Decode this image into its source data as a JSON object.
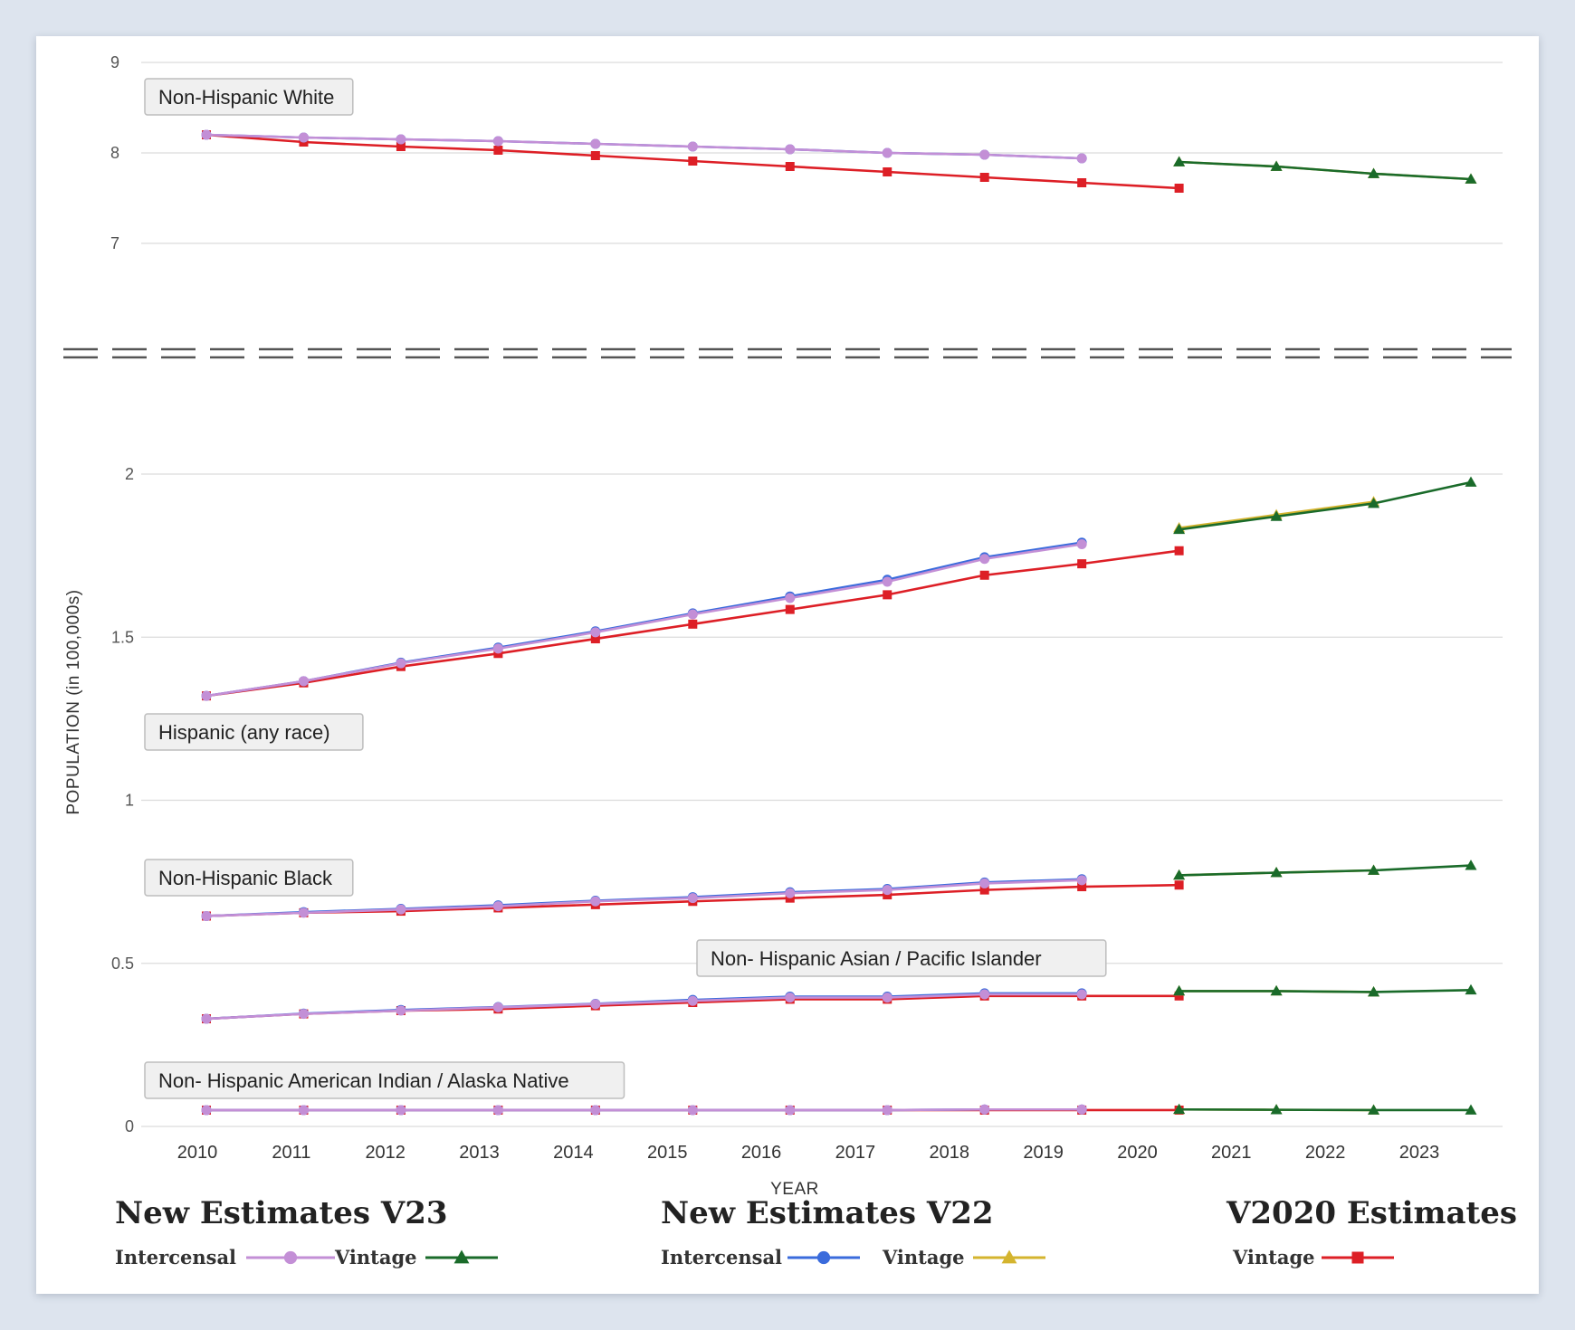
{
  "chart_data": {
    "type": "line",
    "xlabel": "YEAR",
    "ylabel": "POPULATION (in 100,000s)",
    "x": [
      2010,
      2011,
      2012,
      2013,
      2014,
      2015,
      2016,
      2017,
      2018,
      2019,
      2020,
      2021,
      2022,
      2023
    ],
    "x_ticks": [
      "2010",
      "2011",
      "2012",
      "2013",
      "2014",
      "2015",
      "2016",
      "2017",
      "2018",
      "2019",
      "2020",
      "2021",
      "2022",
      "2023"
    ],
    "upper_axis": {
      "ylim": [
        7,
        9
      ],
      "ticks": [
        "7",
        "8",
        "9"
      ]
    },
    "lower_axis": {
      "ylim": [
        0,
        2
      ],
      "ticks": [
        "0",
        "0.5",
        "1",
        "1.5",
        "2"
      ]
    },
    "groups": [
      {
        "label": "Non-Hispanic White",
        "panel": "upper",
        "series": {
          "v23_intercensal": [
            8.2,
            8.17,
            8.15,
            8.13,
            8.1,
            8.07,
            8.04,
            8.0,
            7.98,
            7.94,
            null,
            null,
            null,
            null
          ],
          "v22_intercensal": [
            8.2,
            8.17,
            8.15,
            8.13,
            8.1,
            8.07,
            8.04,
            8.0,
            7.98,
            7.94,
            null,
            null,
            null,
            null
          ],
          "v2020_vintage": [
            8.2,
            8.12,
            8.07,
            8.03,
            7.97,
            7.91,
            7.85,
            7.79,
            7.73,
            7.67,
            7.61,
            null,
            null,
            null
          ],
          "v22_vintage": [
            null,
            null,
            null,
            null,
            null,
            null,
            null,
            null,
            null,
            null,
            7.9,
            7.85,
            7.77,
            7.71
          ],
          "v23_vintage": [
            null,
            null,
            null,
            null,
            null,
            null,
            null,
            null,
            null,
            null,
            7.9,
            7.85,
            7.77,
            7.71
          ]
        }
      },
      {
        "label": "Hispanic (any race)",
        "panel": "lower",
        "series": {
          "v23_intercensal": [
            1.32,
            1.365,
            1.42,
            1.465,
            1.515,
            1.57,
            1.62,
            1.67,
            1.74,
            1.785,
            null,
            null,
            null,
            null
          ],
          "v22_intercensal": [
            1.32,
            1.365,
            1.422,
            1.468,
            1.518,
            1.573,
            1.625,
            1.676,
            1.745,
            1.79,
            null,
            null,
            null,
            null
          ],
          "v2020_vintage": [
            1.32,
            1.36,
            1.41,
            1.45,
            1.495,
            1.54,
            1.585,
            1.63,
            1.69,
            1.725,
            1.765,
            null,
            null,
            null
          ],
          "v22_vintage": [
            null,
            null,
            null,
            null,
            null,
            null,
            null,
            null,
            null,
            null,
            1.835,
            1.875,
            1.915,
            null
          ],
          "v23_vintage": [
            null,
            null,
            null,
            null,
            null,
            null,
            null,
            null,
            null,
            null,
            1.83,
            1.87,
            1.91,
            1.975
          ]
        }
      },
      {
        "label": "Non-Hispanic Black",
        "panel": "lower",
        "series": {
          "v23_intercensal": [
            0.645,
            0.655,
            0.665,
            0.675,
            0.69,
            0.7,
            0.715,
            0.725,
            0.745,
            0.755,
            null,
            null,
            null,
            null
          ],
          "v22_intercensal": [
            0.645,
            0.657,
            0.667,
            0.678,
            0.692,
            0.703,
            0.718,
            0.728,
            0.748,
            0.758,
            null,
            null,
            null,
            null
          ],
          "v2020_vintage": [
            0.645,
            0.655,
            0.66,
            0.67,
            0.68,
            0.69,
            0.7,
            0.71,
            0.725,
            0.735,
            0.74,
            null,
            null,
            null
          ],
          "v22_vintage": [
            null,
            null,
            null,
            null,
            null,
            null,
            null,
            null,
            null,
            null,
            0.77,
            0.778,
            0.785,
            null
          ],
          "v23_vintage": [
            null,
            null,
            null,
            null,
            null,
            null,
            null,
            null,
            null,
            null,
            0.77,
            0.778,
            0.785,
            0.8
          ]
        }
      },
      {
        "label": "Non- Hispanic Asian / Pacific Islander",
        "panel": "lower",
        "series": {
          "v23_intercensal": [
            0.33,
            0.345,
            0.355,
            0.365,
            0.375,
            0.385,
            0.395,
            0.395,
            0.405,
            0.405,
            null,
            null,
            null,
            null
          ],
          "v22_intercensal": [
            0.33,
            0.346,
            0.357,
            0.366,
            0.376,
            0.388,
            0.398,
            0.398,
            0.408,
            0.408,
            null,
            null,
            null,
            null
          ],
          "v2020_vintage": [
            0.33,
            0.345,
            0.355,
            0.36,
            0.37,
            0.38,
            0.39,
            0.39,
            0.4,
            0.4,
            0.4,
            null,
            null,
            null
          ],
          "v22_vintage": [
            null,
            null,
            null,
            null,
            null,
            null,
            null,
            null,
            null,
            null,
            0.415,
            0.415,
            0.412,
            null
          ],
          "v23_vintage": [
            null,
            null,
            null,
            null,
            null,
            null,
            null,
            null,
            null,
            null,
            0.415,
            0.415,
            0.412,
            0.418
          ]
        }
      },
      {
        "label": "Non- Hispanic American Indian / Alaska Native",
        "panel": "lower",
        "series": {
          "v23_intercensal": [
            0.05,
            0.05,
            0.05,
            0.05,
            0.05,
            0.05,
            0.05,
            0.05,
            0.052,
            0.052,
            null,
            null,
            null,
            null
          ],
          "v22_intercensal": [
            0.05,
            0.05,
            0.05,
            0.05,
            0.05,
            0.05,
            0.05,
            0.05,
            0.052,
            0.052,
            null,
            null,
            null,
            null
          ],
          "v2020_vintage": [
            0.05,
            0.05,
            0.05,
            0.05,
            0.05,
            0.05,
            0.05,
            0.05,
            0.05,
            0.05,
            0.05,
            null,
            null,
            null
          ],
          "v22_vintage": [
            null,
            null,
            null,
            null,
            null,
            null,
            null,
            null,
            null,
            null,
            0.052,
            0.051,
            0.05,
            null
          ],
          "v23_vintage": [
            null,
            null,
            null,
            null,
            null,
            null,
            null,
            null,
            null,
            null,
            0.052,
            0.051,
            0.05,
            0.05
          ]
        }
      }
    ],
    "legend": [
      {
        "title": "New Estimates V23",
        "entries": [
          {
            "label": "Intercensal",
            "series": "v23_intercensal",
            "color": "#c38fd6",
            "marker": "circle"
          },
          {
            "label": "Vintage",
            "series": "v23_vintage",
            "color": "#1a6b2a",
            "marker": "triangle"
          }
        ]
      },
      {
        "title": "New Estimates V22",
        "entries": [
          {
            "label": "Intercensal",
            "series": "v22_intercensal",
            "color": "#3a6bdc",
            "marker": "circle"
          },
          {
            "label": "Vintage",
            "series": "v22_vintage",
            "color": "#d4b42e",
            "marker": "triangle"
          }
        ]
      },
      {
        "title": "V2020 Estimates",
        "entries": [
          {
            "label": "Vintage",
            "series": "v2020_vintage",
            "color": "#dd1f26",
            "marker": "square"
          }
        ]
      }
    ],
    "grid": true,
    "axis_break": true
  }
}
